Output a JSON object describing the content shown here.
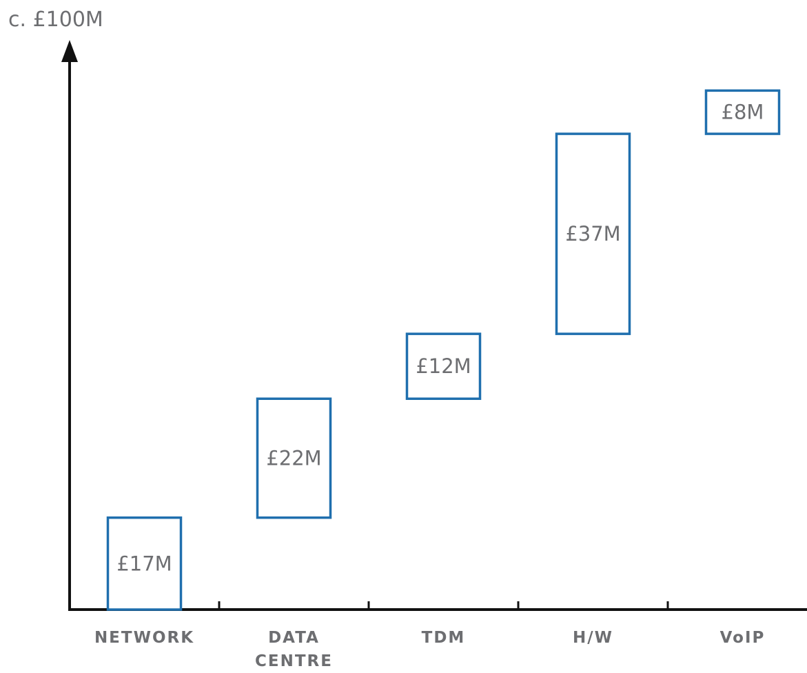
{
  "chart_data": {
    "type": "bar",
    "subtype": "waterfall",
    "y_axis_top_label": "c. £100M",
    "categories": [
      {
        "lines": [
          "NETWORK"
        ]
      },
      {
        "lines": [
          "DATA",
          "CENTRE"
        ]
      },
      {
        "lines": [
          "TDM"
        ]
      },
      {
        "lines": [
          "H/W"
        ]
      },
      {
        "lines": [
          "VoIP"
        ]
      }
    ],
    "values": [
      17,
      22,
      12,
      37,
      8
    ],
    "value_labels": [
      "£17M",
      "£22M",
      "£12M",
      "£37M",
      "£8M"
    ],
    "ylim": [
      0,
      100
    ],
    "grid": false,
    "legend": "none",
    "colors": {
      "bar_outline": "#1f6fae",
      "bar_fill": "#ffffff",
      "axis": "#111111",
      "text": "#6d6e71"
    }
  }
}
